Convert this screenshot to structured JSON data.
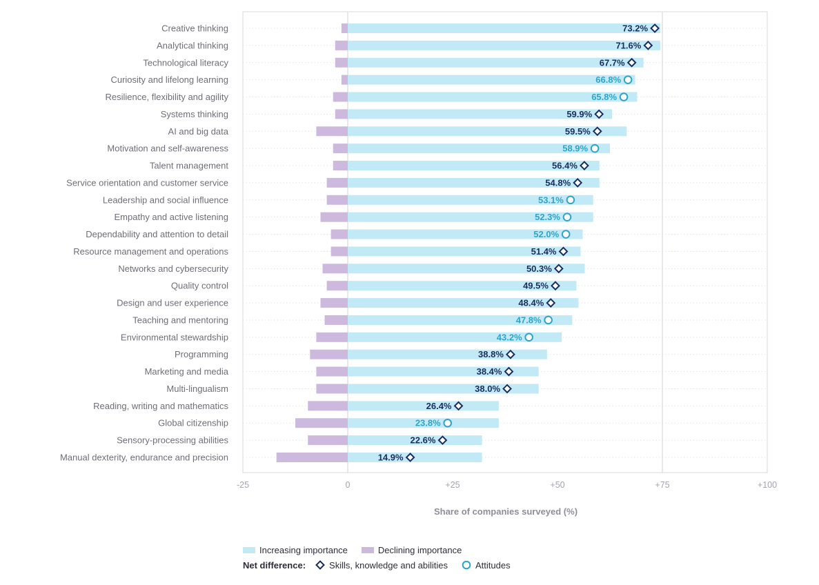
{
  "colors": {
    "increasing": "#c2e9f6",
    "declining": "#cdb9de",
    "skills": "#1a2e5e",
    "attitudes": "#2ea5c7",
    "axis_text": "#a3a3b0",
    "category_text": "#6e6e78",
    "grid": "#d8d8de"
  },
  "chart_data": {
    "type": "bar",
    "orientation": "horizontal",
    "xlabel": "Share of companies surveyed (%)",
    "xlim": [
      -25,
      100
    ],
    "xticks": [
      -25,
      0,
      25,
      50,
      75,
      100
    ],
    "xtick_labels": [
      "-25",
      "0",
      "+25",
      "+50",
      "+75",
      "+100"
    ],
    "categories": [
      "Creative thinking",
      "Analytical thinking",
      "Technological literacy",
      "Curiosity and lifelong learning",
      "Resilience, flexibility and agility",
      "Systems thinking",
      "AI and big data",
      "Motivation and self-awareness",
      "Talent management",
      "Service orientation and customer service",
      "Leadership and social influence",
      "Empathy and active listening",
      "Dependability and attention to detail",
      "Resource management and operations",
      "Networks and cybersecurity",
      "Quality control",
      "Design and user experience",
      "Teaching and mentoring",
      "Environmental stewardship",
      "Programming",
      "Marketing and media",
      "Multi-lingualism",
      "Reading, writing and mathematics",
      "Global citizenship",
      "Sensory-processing abilities",
      "Manual dexterity, endurance and precision"
    ],
    "series": [
      {
        "name": "Increasing importance",
        "values": [
          74.5,
          74.5,
          70.5,
          68.5,
          69.0,
          63.0,
          66.5,
          62.5,
          60.0,
          60.0,
          58.5,
          58.5,
          56.0,
          55.5,
          56.5,
          54.5,
          55.0,
          53.5,
          51.0,
          47.5,
          45.5,
          45.5,
          36.0,
          36.0,
          32.0,
          32.0
        ]
      },
      {
        "name": "Declining importance",
        "values": [
          -1.5,
          -3.0,
          -3.0,
          -1.5,
          -3.5,
          -3.0,
          -7.5,
          -3.5,
          -3.5,
          -5.0,
          -5.0,
          -6.5,
          -4.0,
          -4.0,
          -6.0,
          -5.0,
          -6.5,
          -5.5,
          -7.5,
          -9.0,
          -7.5,
          -7.5,
          -9.5,
          -12.5,
          -9.5,
          -17.0
        ]
      },
      {
        "name": "Net difference",
        "values": [
          73.2,
          71.6,
          67.7,
          66.8,
          65.8,
          59.9,
          59.5,
          58.9,
          56.4,
          54.8,
          53.1,
          52.3,
          52.0,
          51.4,
          50.3,
          49.5,
          48.4,
          47.8,
          43.2,
          38.8,
          38.4,
          38.0,
          26.4,
          23.8,
          22.6,
          14.9
        ],
        "labels": [
          "73.2%",
          "71.6%",
          "67.7%",
          "66.8%",
          "65.8%",
          "59.9%",
          "59.5%",
          "58.9%",
          "56.4%",
          "54.8%",
          "53.1%",
          "52.3%",
          "52.0%",
          "51.4%",
          "50.3%",
          "49.5%",
          "48.4%",
          "47.8%",
          "43.2%",
          "38.8%",
          "38.4%",
          "38.0%",
          "26.4%",
          "23.8%",
          "22.6%",
          "14.9%"
        ],
        "kinds": [
          "skill",
          "skill",
          "skill",
          "attitude",
          "attitude",
          "skill",
          "skill",
          "attitude",
          "skill",
          "skill",
          "attitude",
          "attitude",
          "attitude",
          "skill",
          "skill",
          "skill",
          "skill",
          "attitude",
          "attitude",
          "skill",
          "skill",
          "skill",
          "skill",
          "attitude",
          "skill",
          "skill"
        ]
      }
    ],
    "legend": {
      "increasing": "Increasing importance",
      "declining": "Declining importance",
      "net_title": "Net difference:",
      "skills": "Skills, knowledge and abilities",
      "attitudes": "Attitudes"
    },
    "grid": true
  }
}
